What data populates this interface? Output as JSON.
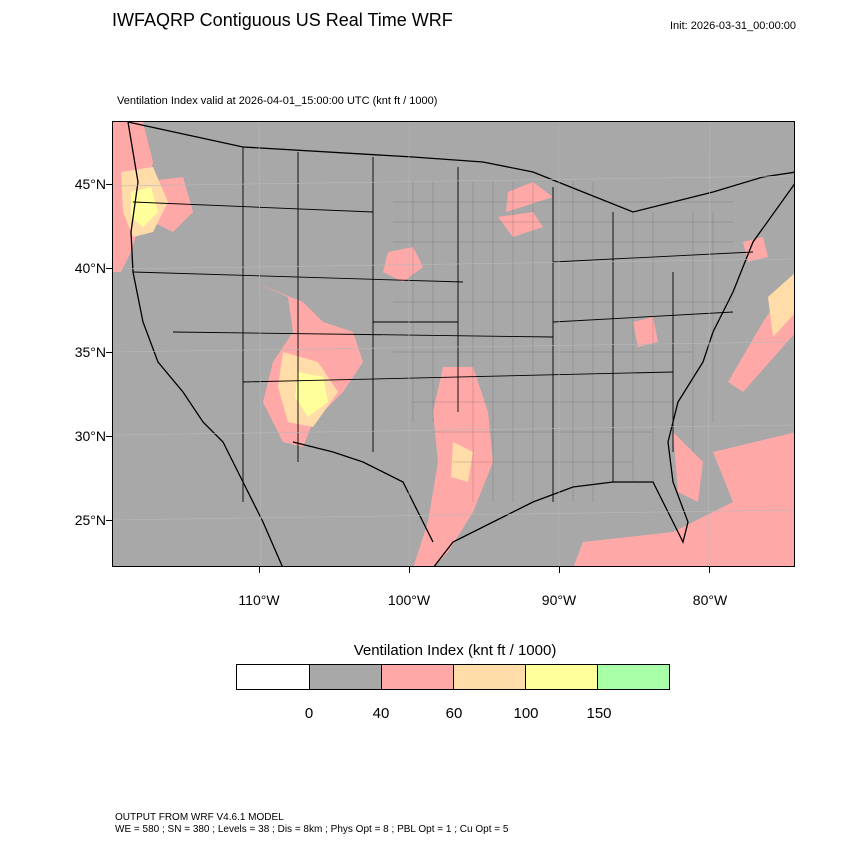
{
  "header": {
    "title": "IWFAQRP Contiguous US Real Time WRF",
    "init": "Init: 2026-03-31_00:00:00"
  },
  "map": {
    "subtitle": "Ventilation Index valid at 2026-04-01_15:00:00 UTC   (knt ft / 1000)",
    "region": "Contiguous United States",
    "background_color": "#a8a8a8",
    "lat_labels": [
      "45°N",
      "40°N",
      "35°N",
      "30°N",
      "25°N"
    ],
    "lon_labels": [
      "110°W",
      "100°W",
      "90°W",
      "80°W"
    ],
    "features": [
      "state-boundaries",
      "county-boundaries",
      "coastlines",
      "country-boundaries"
    ]
  },
  "legend": {
    "title": "Ventilation Index  (knt ft / 1000)",
    "colors": [
      "#ffffff",
      "#a8a8a8",
      "#ffa8a8",
      "#ffdca8",
      "#ffff9c",
      "#a8ffa8"
    ],
    "labels": [
      "0",
      "40",
      "60",
      "100",
      "150"
    ]
  },
  "footer": {
    "line1": "OUTPUT FROM WRF V4.6.1 MODEL",
    "line2": "WE = 580 ; SN = 380 ; Levels = 38 ; Dis = 8km ; Phys Opt = 8 ; PBL Opt = 1 ; Cu Opt = 5"
  }
}
